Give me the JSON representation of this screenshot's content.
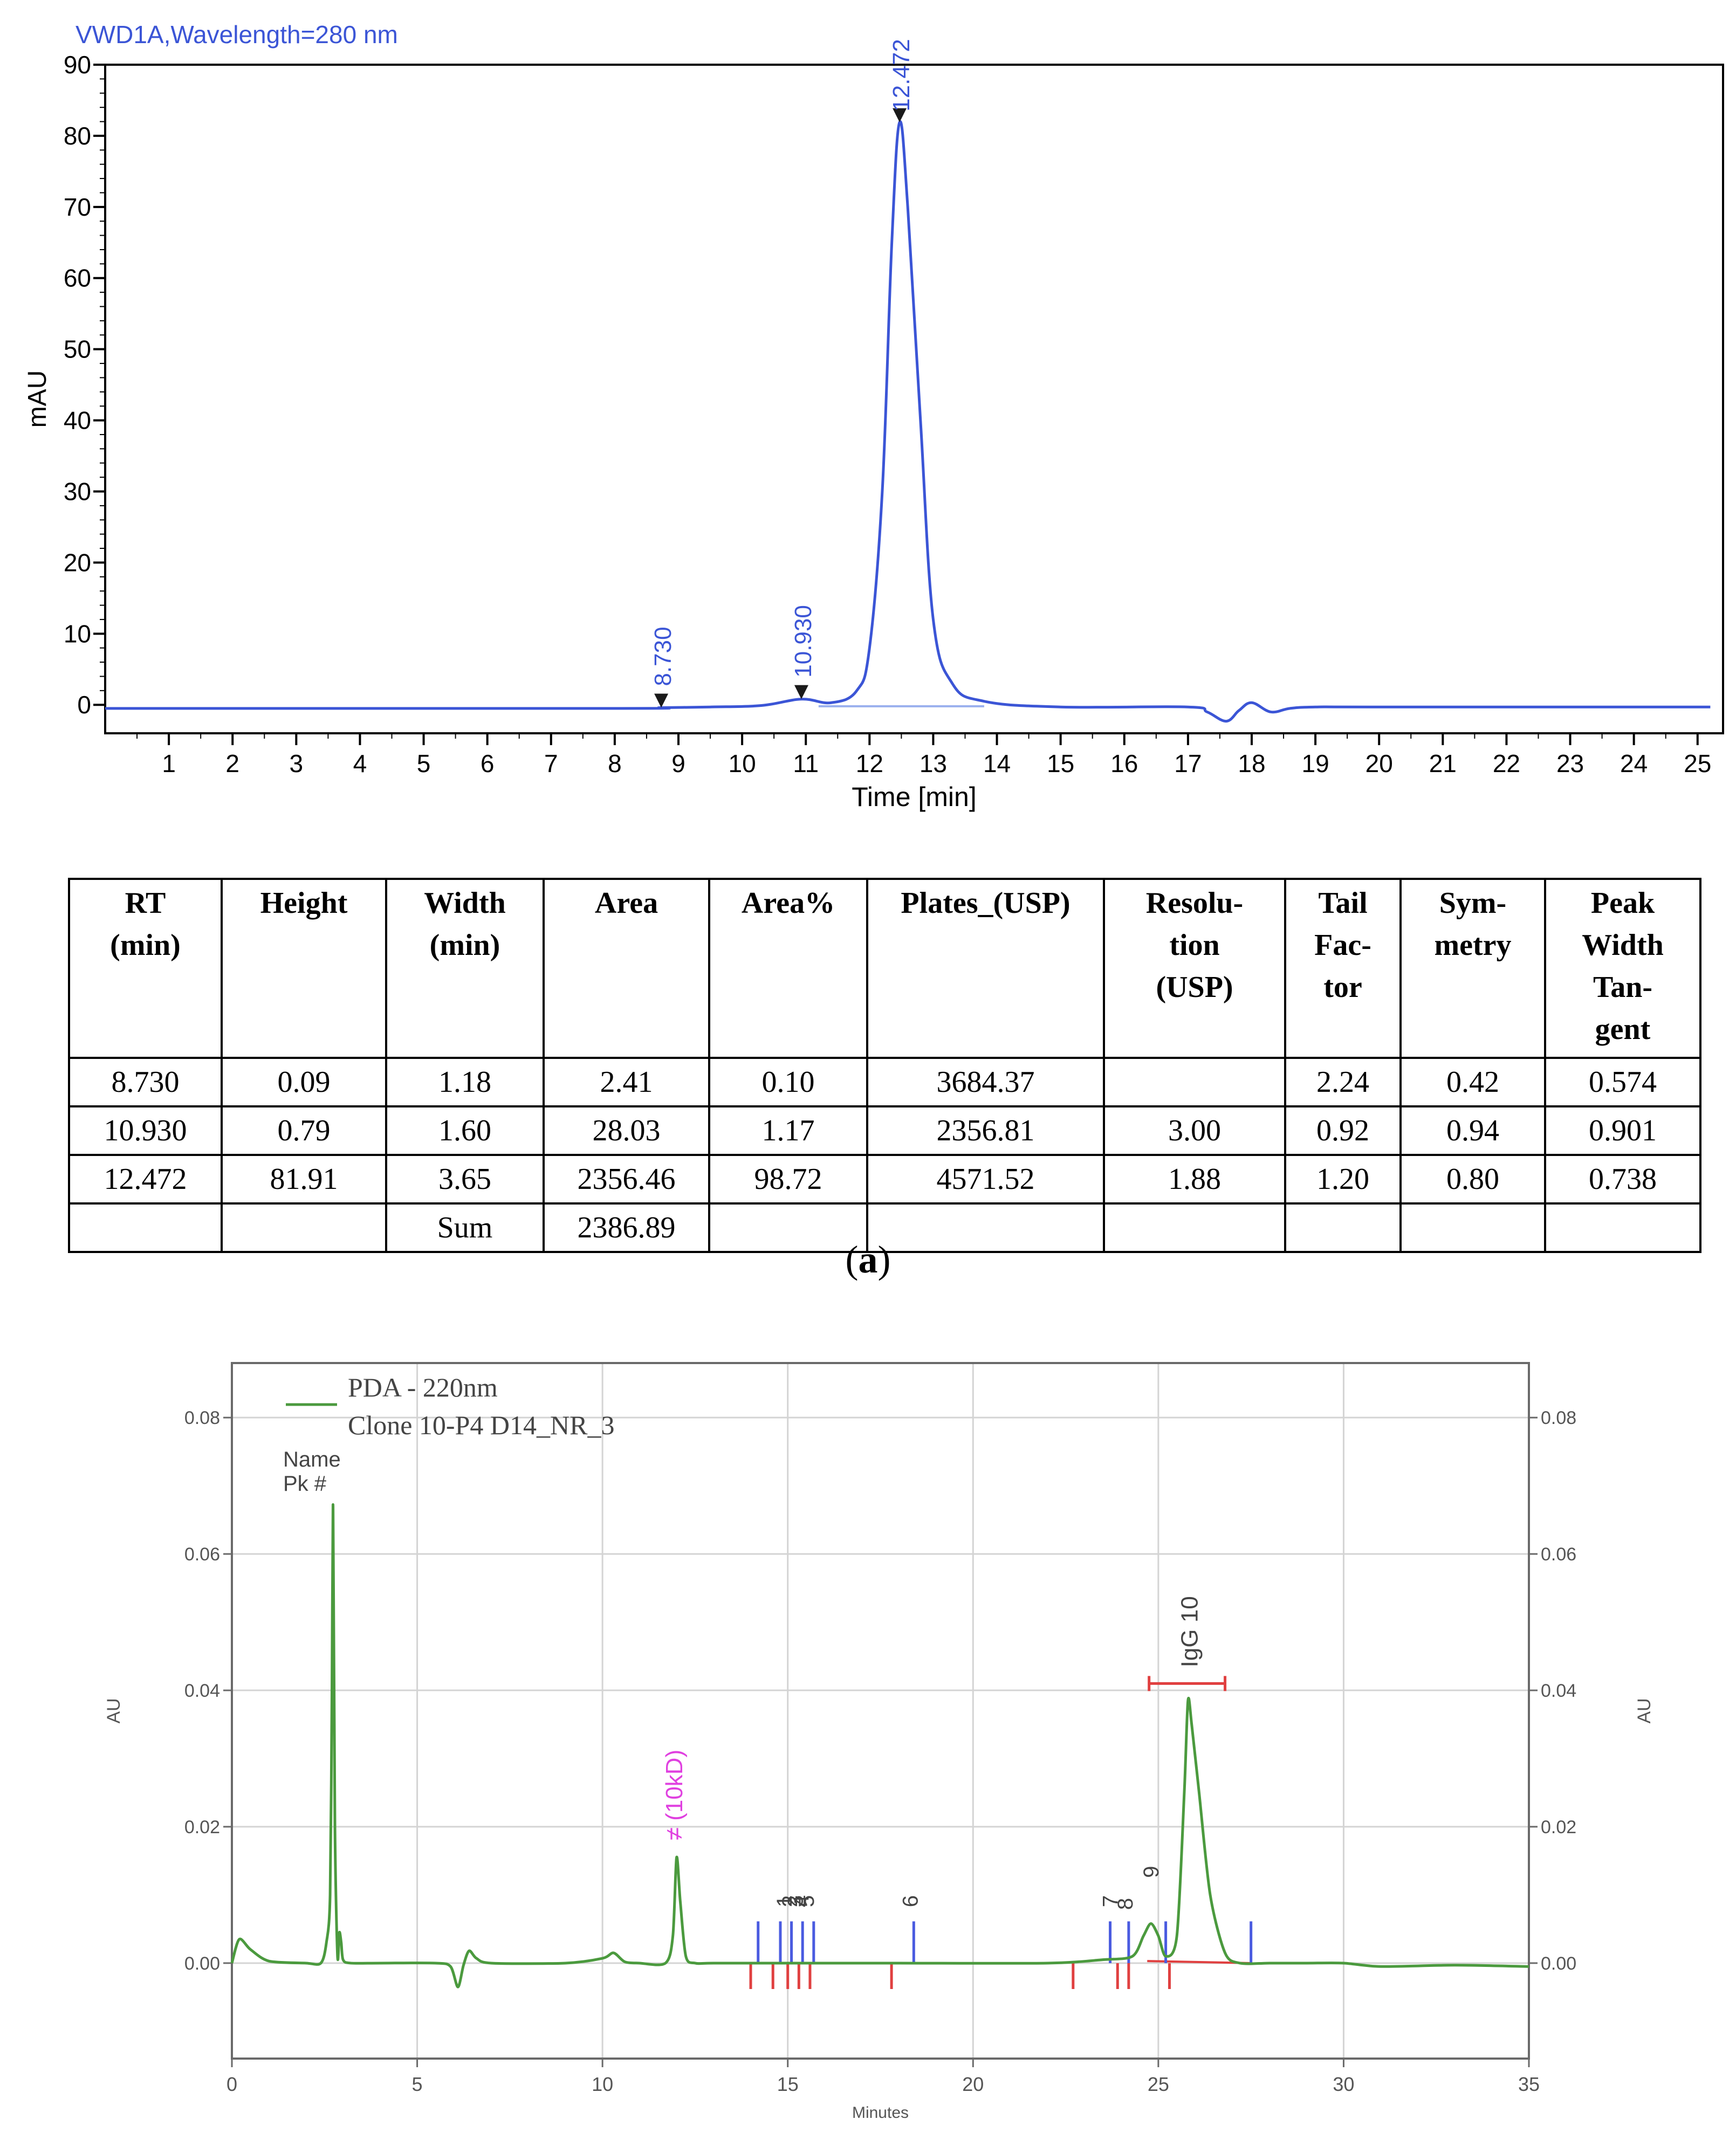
{
  "chart_data": [
    {
      "type": "line",
      "title": "VWD1A,Wavelength=280 nm",
      "xlabel": "Time [min]",
      "ylabel": "mAU",
      "xlim": [
        0,
        25.4
      ],
      "ylim": [
        -4,
        90
      ],
      "xticks": [
        1,
        2,
        3,
        4,
        5,
        6,
        7,
        8,
        9,
        10,
        11,
        12,
        13,
        14,
        15,
        16,
        17,
        18,
        19,
        20,
        21,
        22,
        23,
        24,
        25
      ],
      "yticks": [
        0,
        10,
        20,
        30,
        40,
        50,
        60,
        70,
        80,
        90
      ],
      "grid": false,
      "series": [
        {
          "color": "#3b55d6",
          "x": [
            0,
            8,
            8.73,
            9.5,
            10.3,
            10.93,
            11.4,
            11.8,
            12.0,
            12.2,
            12.35,
            12.472,
            12.6,
            12.8,
            13.0,
            13.3,
            13.8,
            15,
            17.0,
            17.3,
            17.6,
            17.8,
            18.0,
            18.3,
            18.6,
            19.0,
            20,
            25.2
          ],
          "y": [
            -0.5,
            -0.5,
            -0.4,
            -0.3,
            -0.1,
            0.8,
            0.3,
            2,
            8,
            30,
            65,
            81.91,
            70,
            40,
            12,
            3,
            0.5,
            -0.3,
            -0.3,
            -1,
            -2.3,
            -0.8,
            0.3,
            -1,
            -0.5,
            -0.3,
            -0.3,
            -0.3
          ]
        }
      ],
      "peaks": [
        {
          "rt": 8.73,
          "label": "8.730"
        },
        {
          "rt": 10.93,
          "label": "10.930"
        },
        {
          "rt": 12.472,
          "label": "12.472"
        }
      ]
    },
    {
      "type": "line",
      "xlabel": "Minutes",
      "ylabel": "AU",
      "xlim": [
        0,
        35
      ],
      "ylim": [
        -0.014,
        0.088
      ],
      "xticks": [
        0,
        5,
        10,
        15,
        20,
        25,
        30,
        35
      ],
      "yticks": [
        0.0,
        0.02,
        0.04,
        0.06,
        0.08
      ],
      "ytick_labels": [
        "0.00",
        "0.02",
        "0.04",
        "0.06",
        "0.08"
      ],
      "grid": true,
      "legend": {
        "position": "top-left",
        "entries": [
          "PDA - 220nm",
          "Clone 10-P4 D14_NR_3"
        ]
      },
      "series": [
        {
          "name": "PDA - 220nm",
          "color": "#4b9a3e",
          "x": [
            0,
            0.2,
            0.5,
            1.0,
            2.0,
            2.4,
            2.55,
            2.65,
            2.7,
            2.73,
            2.78,
            2.85,
            2.9,
            2.95,
            3.0,
            3.2,
            4,
            5.5,
            5.9,
            6.1,
            6.25,
            6.4,
            6.6,
            7,
            9,
            10,
            10.3,
            10.6,
            11,
            11.7,
            11.9,
            12.0,
            12.1,
            12.25,
            12.5,
            13,
            15,
            18,
            22,
            23.5,
            24.3,
            24.6,
            24.8,
            25.0,
            25.2,
            25.5,
            25.7,
            25.8,
            25.9,
            26.1,
            26.4,
            26.8,
            27.2,
            28,
            29,
            30,
            31,
            33,
            35
          ],
          "y": [
            0.0,
            0.0035,
            0.002,
            0.0003,
            0.0,
            0.0,
            0.003,
            0.01,
            0.04,
            0.067,
            0.02,
            0.001,
            0.0045,
            0.003,
            0.0005,
            0.0,
            0.0,
            0.0,
            -0.0005,
            -0.0035,
            -0.0003,
            0.0018,
            0.0007,
            0.0,
            0.0,
            0.0007,
            0.0015,
            0.0002,
            0.0,
            0.0,
            0.004,
            0.0155,
            0.009,
            0.001,
            0.0,
            0.0,
            0.0,
            0.0,
            0.0,
            0.0005,
            0.001,
            0.004,
            0.0058,
            0.004,
            0.001,
            0.004,
            0.025,
            0.0385,
            0.035,
            0.025,
            0.01,
            0.0015,
            0.0,
            0.0,
            0.0,
            0.0,
            -0.0005,
            -0.0003,
            -0.0005
          ]
        }
      ],
      "annotations": {
        "name_header": "Name",
        "pk_header": "Pk #",
        "pk_labels": [
          {
            "x": 14.9,
            "text": "1"
          },
          {
            "x": 15.05,
            "text": "2"
          },
          {
            "x": 15.2,
            "text": "3"
          },
          {
            "x": 15.35,
            "text": "4"
          },
          {
            "x": 15.5,
            "text": "5"
          },
          {
            "x": 18.3,
            "text": "6"
          },
          {
            "x": 23.7,
            "text": "7"
          },
          {
            "x": 24.1,
            "text": "8"
          },
          {
            "x": 24.8,
            "text": "9"
          }
        ],
        "magenta_label": "≠ (10kD)",
        "igg_label": "IgG 10",
        "igg_bracket": [
          24.75,
          26.8
        ],
        "blue_markers": [
          14.2,
          14.8,
          15.1,
          15.4,
          15.7,
          18.4,
          23.7,
          24.2,
          25.2,
          27.5
        ],
        "red_markers": [
          14.0,
          14.6,
          15.0,
          15.3,
          15.6,
          17.8,
          22.7,
          23.9,
          24.2,
          25.3
        ]
      }
    }
  ],
  "table": {
    "headers": [
      [
        "RT",
        "(min)"
      ],
      [
        "Height"
      ],
      [
        "Width",
        "(min)"
      ],
      [
        "Area"
      ],
      [
        "Area%"
      ],
      [
        "Plates_(USP)"
      ],
      [
        "Resolu-",
        "tion",
        "(USP)"
      ],
      [
        "Tail",
        "Fac-",
        "tor"
      ],
      [
        "Sym-",
        "metry"
      ],
      [
        "Peak",
        "Width",
        "Tan-",
        "gent"
      ]
    ],
    "rows": [
      [
        "8.730",
        "0.09",
        "1.18",
        "2.41",
        "0.10",
        "3684.37",
        "",
        "2.24",
        "0.42",
        "0.574"
      ],
      [
        "10.930",
        "0.79",
        "1.60",
        "28.03",
        "1.17",
        "2356.81",
        "3.00",
        "0.92",
        "0.94",
        "0.901"
      ],
      [
        "12.472",
        "81.91",
        "3.65",
        "2356.46",
        "98.72",
        "4571.52",
        "1.88",
        "1.20",
        "0.80",
        "0.738"
      ],
      [
        "",
        "",
        "Sum",
        "2386.89",
        "",
        "",
        "",
        "",
        "",
        ""
      ]
    ]
  },
  "caption_a": {
    "open": "(",
    "letter": "a",
    "close": ")"
  }
}
